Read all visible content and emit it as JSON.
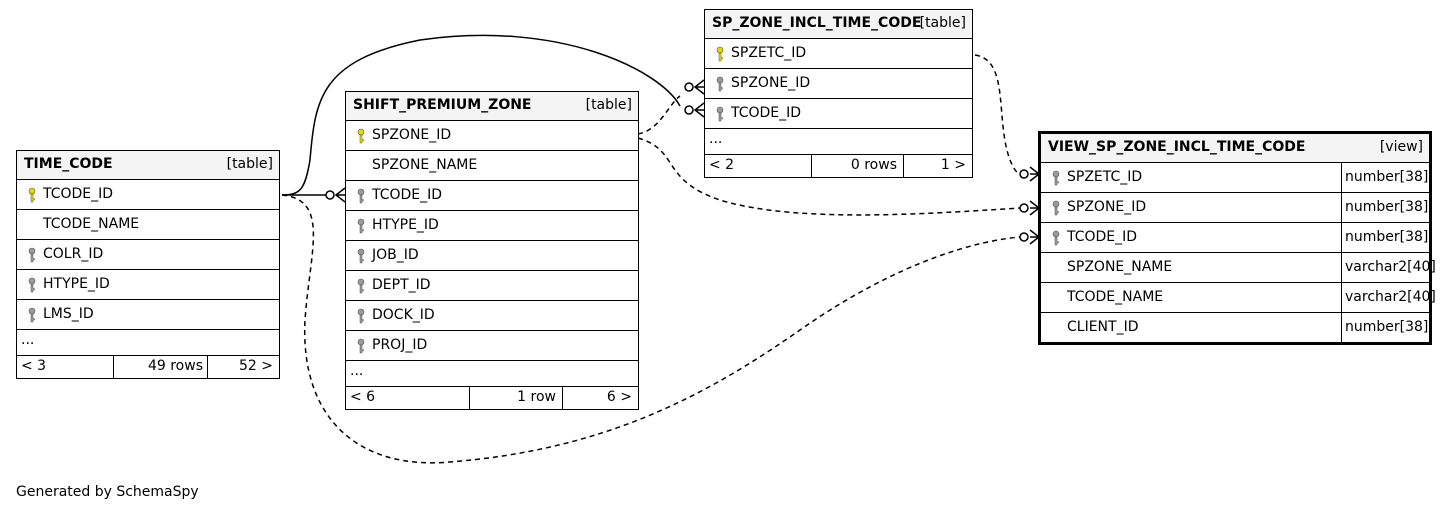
{
  "tables": {
    "time_code": {
      "name": "TIME_CODE",
      "kind": "[table]",
      "columns": [
        {
          "name": "TCODE_ID",
          "key": "primary"
        },
        {
          "name": "TCODE_NAME",
          "key": ""
        },
        {
          "name": "COLR_ID",
          "key": "foreign"
        },
        {
          "name": "HTYPE_ID",
          "key": "foreign"
        },
        {
          "name": "LMS_ID",
          "key": "foreign"
        }
      ],
      "more": "...",
      "footer": {
        "parents": "< 3",
        "rows": "49 rows",
        "children": "52 >"
      }
    },
    "shift_premium_zone": {
      "name": "SHIFT_PREMIUM_ZONE",
      "kind": "[table]",
      "columns": [
        {
          "name": "SPZONE_ID",
          "key": "primary"
        },
        {
          "name": "SPZONE_NAME",
          "key": ""
        },
        {
          "name": "TCODE_ID",
          "key": "foreign"
        },
        {
          "name": "HTYPE_ID",
          "key": "foreign"
        },
        {
          "name": "JOB_ID",
          "key": "foreign"
        },
        {
          "name": "DEPT_ID",
          "key": "foreign"
        },
        {
          "name": "DOCK_ID",
          "key": "foreign"
        },
        {
          "name": "PROJ_ID",
          "key": "foreign"
        }
      ],
      "more": "...",
      "footer": {
        "parents": "< 6",
        "rows": "1 row",
        "children": "6 >"
      }
    },
    "sp_zone_incl_time_code": {
      "name": "SP_ZONE_INCL_TIME_CODE",
      "kind": "[table]",
      "columns": [
        {
          "name": "SPZETC_ID",
          "key": "primary"
        },
        {
          "name": "SPZONE_ID",
          "key": "foreign"
        },
        {
          "name": "TCODE_ID",
          "key": "foreign"
        }
      ],
      "more": "...",
      "footer": {
        "parents": "< 2",
        "rows": "0 rows",
        "children": "1 >"
      }
    },
    "view_sp_zone_incl_time_code": {
      "name": "VIEW_SP_ZONE_INCL_TIME_CODE",
      "kind": "[view]",
      "columns": [
        {
          "name": "SPZETC_ID",
          "key": "foreign",
          "type": "number[38]"
        },
        {
          "name": "SPZONE_ID",
          "key": "foreign",
          "type": "number[38]"
        },
        {
          "name": "TCODE_ID",
          "key": "foreign",
          "type": "number[38]"
        },
        {
          "name": "SPZONE_NAME",
          "key": "",
          "type": "varchar2[40]"
        },
        {
          "name": "TCODE_NAME",
          "key": "",
          "type": "varchar2[40]"
        },
        {
          "name": "CLIENT_ID",
          "key": "",
          "type": "number[38]"
        }
      ]
    }
  },
  "generated_by": "Generated by SchemaSpy",
  "colors": {
    "primary_key": "#e8d800",
    "foreign_key": "#9a9a9a",
    "header_bg": "#f4f4f4"
  }
}
